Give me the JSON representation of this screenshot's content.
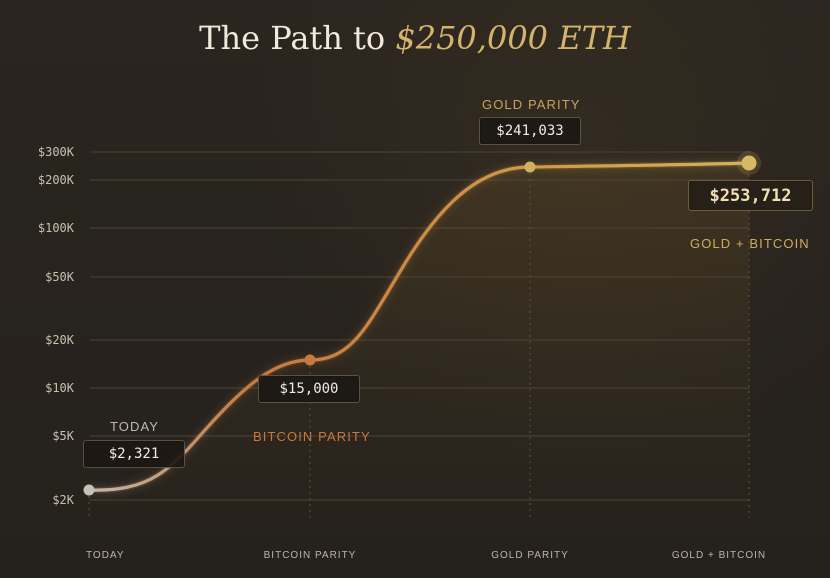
{
  "title": {
    "prefix": "The Path to ",
    "highlight": "$250,000 ETH"
  },
  "colors": {
    "background": "#27231d",
    "grid": "#4a433a",
    "line_start": "#c4b8a8",
    "line_mid": "#c77a3f",
    "line_end": "#d5b15c",
    "fill": "#6d5427"
  },
  "labels": {
    "today": "TODAY",
    "bitcoin_parity": "BITCOIN PARITY",
    "gold_parity": "GOLD PARITY",
    "gold_bitcoin": "GOLD + BITCOIN"
  },
  "callouts": {
    "today": "$2,321",
    "bitcoin_parity": "$15,000",
    "gold_parity": "$241,033",
    "gold_bitcoin": "$253,712"
  },
  "chart_data": {
    "type": "line",
    "title": "The Path to $250,000 ETH",
    "scale": "log",
    "x_categories": [
      "TODAY",
      "BITCOIN PARITY",
      "GOLD PARITY",
      "GOLD + BITCOIN"
    ],
    "y_ticks": [
      {
        "label": "$300K",
        "value": 300000
      },
      {
        "label": "$200K",
        "value": 200000
      },
      {
        "label": "$100K",
        "value": 100000
      },
      {
        "label": "$50K",
        "value": 50000
      },
      {
        "label": "$20K",
        "value": 20000
      },
      {
        "label": "$10K",
        "value": 10000
      },
      {
        "label": "$5K",
        "value": 5000
      },
      {
        "label": "$2K",
        "value": 2000
      }
    ],
    "ylim": [
      2000,
      300000
    ],
    "points": [
      {
        "category": "TODAY",
        "value": 2321,
        "label": "$2,321"
      },
      {
        "category": "BITCOIN PARITY",
        "value": 15000,
        "label": "$15,000"
      },
      {
        "category": "GOLD PARITY",
        "value": 241033,
        "label": "$241,033"
      },
      {
        "category": "GOLD + BITCOIN",
        "value": 253712,
        "label": "$253,712"
      }
    ],
    "xlabel": "",
    "ylabel": ""
  }
}
